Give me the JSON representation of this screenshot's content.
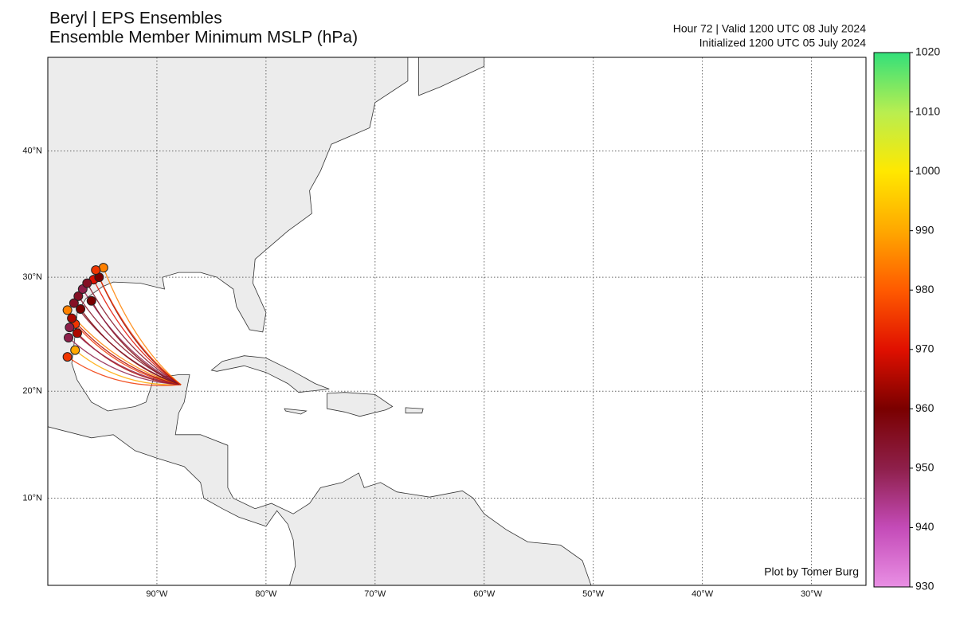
{
  "chart_data": {
    "type": "map",
    "title": "Beryl | EPS Ensembles",
    "subtitle": "Ensemble Member Minimum MSLP (hPa)",
    "valid": "Hour 72 | Valid 1200 UTC 08 July 2024",
    "initialized": "Initialized 1200 UTC 05 July 2024",
    "credit": "Plot by Tomer Burg",
    "xlim": [
      -100,
      -25
    ],
    "ylim": [
      1.6,
      46.6
    ],
    "xticks": [
      {
        "value": -90,
        "label": "90°W"
      },
      {
        "value": -80,
        "label": "80°W"
      },
      {
        "value": -70,
        "label": "70°W"
      },
      {
        "value": -60,
        "label": "60°W"
      },
      {
        "value": -50,
        "label": "50°W"
      },
      {
        "value": -40,
        "label": "40°W"
      },
      {
        "value": -30,
        "label": "30°W"
      }
    ],
    "yticks": [
      {
        "value": 10,
        "label": "10°N"
      },
      {
        "value": 20,
        "label": "20°N"
      },
      {
        "value": 30,
        "label": "30°N"
      },
      {
        "value": 40,
        "label": "40°N"
      }
    ],
    "grid": true,
    "colorbar": {
      "lim": [
        930,
        1020
      ],
      "ticks": [
        930,
        940,
        950,
        960,
        970,
        980,
        990,
        1000,
        1010,
        1020
      ],
      "colors": [
        "#e98fe4",
        "#c44bb8",
        "#8e1f4a",
        "#7a0000",
        "#e01000",
        "#ff5a00",
        "#ffa800",
        "#ffe800",
        "#b8ee50",
        "#33e07a"
      ]
    },
    "start": {
      "lon": -87.8,
      "lat": 20.6
    },
    "members": {
      "lon": [
        -95.6,
        -94.9,
        -95.3,
        -96.4,
        -96.8,
        -97.2,
        -97.6,
        -97.0,
        -98.2,
        -97.8,
        -98.0,
        -97.3,
        -98.1,
        -98.2,
        -97.5,
        -95.8,
        -96.0,
        -97.5
      ],
      "lat": [
        30.6,
        30.8,
        30.0,
        29.5,
        29.0,
        28.4,
        27.8,
        27.3,
        27.2,
        26.5,
        25.7,
        25.2,
        24.8,
        23.1,
        23.7,
        29.8,
        28.0,
        26.0
      ],
      "pressure": [
        975,
        985,
        960,
        955,
        950,
        955,
        955,
        960,
        985,
        965,
        950,
        965,
        950,
        975,
        990,
        970,
        960,
        975
      ]
    }
  }
}
